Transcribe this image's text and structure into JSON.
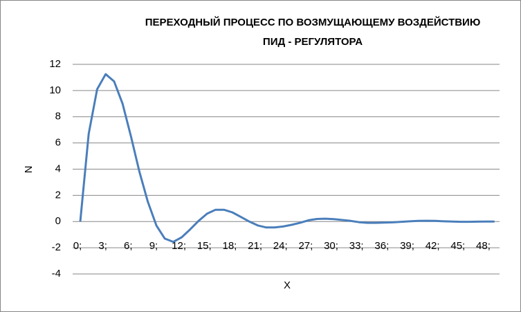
{
  "chart_data": {
    "type": "line",
    "title": [
      "ПЕРЕХОДНЫЙ ПРОЦЕСС ПО ВОЗМУЩАЮЩЕМУ ВОЗДЕЙСТВИЮ",
      "ПИД - РЕГУЛЯТОРА"
    ],
    "x_label": "X",
    "y_label": "N",
    "categories": [
      "0;",
      null,
      null,
      "3;",
      null,
      null,
      "6;",
      null,
      null,
      "9;",
      null,
      null,
      "12;",
      null,
      null,
      "15;",
      null,
      null,
      "18;",
      null,
      null,
      "21;",
      null,
      null,
      "24;",
      null,
      null,
      "27;",
      null,
      null,
      "30;",
      null,
      null,
      "33;",
      null,
      null,
      "36;",
      null,
      null,
      "39;",
      null,
      null,
      "42;",
      null,
      null,
      "45;",
      null,
      null,
      "48;",
      null
    ],
    "series": [
      {
        "name": "N",
        "color": "#4a7ebb",
        "values": [
          0,
          6.7,
          10.1,
          11.25,
          10.7,
          9.0,
          6.5,
          3.8,
          1.5,
          -0.3,
          -1.3,
          -1.55,
          -1.2,
          -0.6,
          0.05,
          0.6,
          0.9,
          0.9,
          0.7,
          0.35,
          0.0,
          -0.3,
          -0.45,
          -0.45,
          -0.38,
          -0.25,
          -0.1,
          0.1,
          0.2,
          0.22,
          0.18,
          0.12,
          0.05,
          -0.05,
          -0.1,
          -0.1,
          -0.08,
          -0.06,
          -0.02,
          0.02,
          0.05,
          0.06,
          0.05,
          0.02,
          0.0,
          -0.02,
          -0.02,
          -0.01,
          0,
          0
        ]
      }
    ],
    "ylim": [
      -4,
      12
    ],
    "yticks": [
      -4,
      -2,
      0,
      2,
      4,
      6,
      8,
      10,
      12
    ],
    "grid": true
  }
}
